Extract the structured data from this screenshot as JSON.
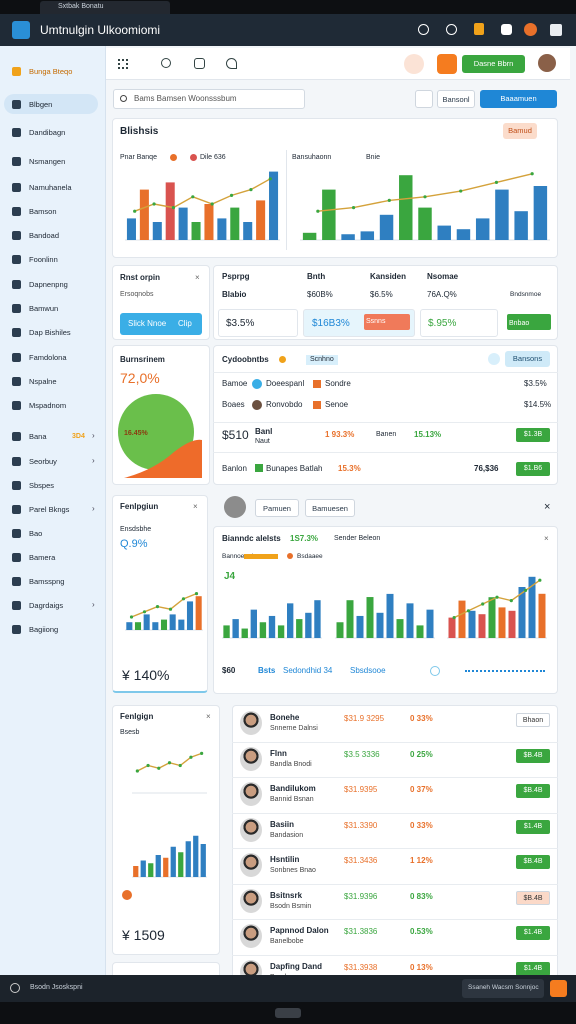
{
  "browser": {
    "tab": "Sxtbak Bonatu"
  },
  "header": {
    "title": "Umtnulgin Ulkoomiomi"
  },
  "sidebar": {
    "items": [
      "Bunga Bteqo",
      "Blbgen",
      "Dandibagn",
      "Nsmangen",
      "Namuhanela",
      "Bamson",
      "Bandoad",
      "Foonlinn",
      "Dapnenpng",
      "Bamwun",
      "Dap Bishiles",
      "Famdolona",
      "Nspalne",
      "Mspadnom",
      "Bana",
      "Seorbuy",
      "Sbspes",
      "Parel Bkngs",
      "Bao",
      "Bamera",
      "Bamsspng",
      "Dagrdaigs",
      "Bagiiong"
    ],
    "badge": "3D4"
  },
  "toolbar": {
    "action": "Dasne Bbrn",
    "search": "Bams Bamsen Woonsssbum",
    "filter": "Bansonl",
    "primary": "Baaamuen"
  },
  "overview": {
    "title": "Blishsis",
    "button": "Bamud",
    "left_legend": [
      "Pnar Banqe",
      "Dile 636"
    ],
    "right_legend": [
      "Bansuhaonn",
      "Bnie"
    ]
  },
  "report": {
    "title": "Rnst orpin",
    "subtitle": "Ersoqnobs",
    "button": "Slick Nnoe",
    "button_tag": "Clip"
  },
  "stats": {
    "headers": [
      "Psprpg",
      "Bnth",
      "Kansiden",
      "Nsomae"
    ],
    "row": [
      "Blabio",
      "$60B%",
      "$6.5%",
      "76A.Q%",
      "Bndsnmoe"
    ],
    "boxes": [
      "$3.5%",
      "$16B3%",
      "Ssnns",
      "$.95%",
      "Bnbao"
    ]
  },
  "balance": {
    "title": "Burnsrinem",
    "value": "72,0%",
    "share": "16.45%"
  },
  "contributors": {
    "title": "Cydoobntbs",
    "tag": "Scnhno",
    "button": "Bansons",
    "rows": [
      {
        "label": "Bamoe",
        "a": "Doeespanl",
        "b": "Sondre",
        "value": "$3.5%"
      },
      {
        "label": "Boaes",
        "a": "Ronvobdo",
        "b": "Senoe",
        "value": "$14.5%"
      }
    ],
    "totals": {
      "amount": "$510",
      "name": "Banl",
      "sub": "Naut",
      "pct1": "1 93.3%",
      "mid": "Banen",
      "pct2": "15.13%",
      "button": "$1.3B"
    },
    "last": {
      "label": "Banlon",
      "tag": "Bunapes Batlah",
      "pct": "15.3%",
      "value": "76,$36",
      "button": "$1.B6"
    }
  },
  "growth": {
    "title": "Fenlpgiun",
    "subtitle": "Ensdsbhe",
    "value": "Q.9%",
    "total": "¥ 140%"
  },
  "analytics": {
    "tabs": [
      "Pamuen",
      "Bamuesen"
    ],
    "title": "Bianndc alelsts",
    "value": "1S7.3%",
    "legend": "Sender Beleon",
    "series": [
      "Bannoenol",
      "Bsdaaee"
    ],
    "marker": "J4",
    "footer": [
      "$60",
      "Bsts",
      "Sedondhid 34",
      "Sbsdsooe"
    ]
  },
  "trend": {
    "title": "Fenlgign",
    "subtitle": "Bsesb",
    "total": "¥ 1509"
  },
  "people": [
    {
      "name": "Bonehe",
      "sub": "Snnerne Dalnsi",
      "value": "$31.9 3295",
      "pct": "0 33%",
      "color": "#e8702a",
      "button": "Bhaon",
      "button_color": "#ffffff"
    },
    {
      "name": "Flnn",
      "sub": "Bandla Bnodi",
      "value": "$3.5 3336",
      "pct": "0 25%",
      "color": "#3aa63f",
      "button": "$B.4B",
      "button_color": "#3aa63f"
    },
    {
      "name": "Bandilukom",
      "sub": "Bannid Bsnan",
      "value": "$31.9395",
      "pct": "0 37%",
      "color": "#e8702a",
      "button": "$B.4B",
      "button_color": "#3aa63f"
    },
    {
      "name": "Basiin",
      "sub": "Bandasion",
      "value": "$31.3390",
      "pct": "0 33%",
      "color": "#e8702a",
      "button": "$1.4B",
      "button_color": "#3aa63f"
    },
    {
      "name": "Hsntilin",
      "sub": "Sonbnes Bnao",
      "value": "$31.3436",
      "pct": "1 12%",
      "color": "#e8702a",
      "button": "$B.4B",
      "button_color": "#3aa63f"
    },
    {
      "name": "Bsitnsrk",
      "sub": "Bsodn Bsmin",
      "value": "$31.9396",
      "pct": "0 83%",
      "color": "#3aa63f",
      "button": "$B.4B",
      "button_color": "#fbd9c8"
    },
    {
      "name": "Papnnod Dalon",
      "sub": "Banelbobe",
      "value": "$31.3836",
      "pct": "0.53%",
      "color": "#3aa63f",
      "button": "$1.4B",
      "button_color": "#3aa63f"
    },
    {
      "name": "Dapfing Dand",
      "sub": "Bandsen",
      "value": "$31.3938",
      "pct": "0 13%",
      "color": "#e8702a",
      "button": "$1.4B",
      "button_color": "#3aa63f"
    }
  ],
  "footer": {
    "left": "Bsodn Jsoskspni",
    "right": "Ssaneh Wacsm Sonnjoc"
  },
  "charts": [
    {
      "ylim": [
        0,
        100
      ],
      "values": [
        30,
        70,
        25,
        80,
        45,
        25,
        50,
        30,
        45,
        25,
        55,
        95
      ],
      "colors": [
        "#2f7fc1",
        "#e8702a",
        "#2f7fc1",
        "#d9534f",
        "#2f7fc1",
        "#3aa63f",
        "#e8702a",
        "#2f7fc1",
        "#3aa63f",
        "#2f7fc1",
        "#e8702a",
        "#2f7fc1"
      ],
      "line": [
        40,
        50,
        45,
        60,
        50,
        62,
        70,
        85
      ]
    },
    {
      "ylim": [
        0,
        100
      ],
      "values": [
        10,
        70,
        8,
        12,
        35,
        90,
        45,
        20,
        15,
        30,
        70,
        40,
        75
      ],
      "colors": [
        "#3aa63f",
        "#3aa63f",
        "#2f7fc1",
        "#2f7fc1",
        "#2f7fc1",
        "#3aa63f",
        "#3aa63f",
        "#2f7fc1",
        "#2f7fc1",
        "#2f7fc1",
        "#2f7fc1",
        "#2f7fc1",
        "#2f7fc1"
      ],
      "line": [
        40,
        45,
        55,
        60,
        68,
        80,
        92
      ]
    },
    {
      "ylim": [
        0,
        100
      ],
      "values": [
        15,
        15,
        30,
        15,
        20,
        30,
        20,
        55,
        65
      ],
      "colors": [
        "#2f7fc1",
        "#3aa63f",
        "#2f7fc1",
        "#2f7fc1",
        "#3aa63f",
        "#2f7fc1",
        "#2f7fc1",
        "#2f7fc1",
        "#e8702a"
      ],
      "line": [
        25,
        35,
        45,
        40,
        60,
        70
      ]
    },
    {
      "ylim": [
        0,
        100
      ],
      "values": [
        20,
        30,
        15,
        45,
        25,
        35,
        20,
        55,
        30,
        40,
        60
      ],
      "colors": [
        "#3aa63f",
        "#2f7fc1",
        "#3aa63f",
        "#2f7fc1",
        "#3aa63f",
        "#2f7fc1",
        "#3aa63f",
        "#2f7fc1",
        "#3aa63f",
        "#2f7fc1",
        "#2f7fc1"
      ]
    },
    {
      "ylim": [
        0,
        100
      ],
      "values": [
        25,
        60,
        35,
        65,
        40,
        70,
        30,
        55,
        20,
        45
      ],
      "colors": [
        "#3aa63f",
        "#3aa63f",
        "#2f7fc1",
        "#3aa63f",
        "#2f7fc1",
        "#2f7fc1",
        "#3aa63f",
        "#2f7fc1",
        "#3aa63f",
        "#2f7fc1"
      ]
    },
    {
      "ylim": [
        0,
        100
      ],
      "values": [
        30,
        55,
        40,
        35,
        60,
        45,
        40,
        75,
        90,
        65
      ],
      "colors": [
        "#d9534f",
        "#e8702a",
        "#2f7fc1",
        "#d9534f",
        "#3aa63f",
        "#e8702a",
        "#d9534f",
        "#2f7fc1",
        "#2f7fc1",
        "#e8702a"
      ],
      "line": [
        30,
        40,
        50,
        60,
        55,
        70,
        85
      ]
    },
    {
      "ylim": [
        0,
        100
      ],
      "line": [
        40,
        50,
        45,
        55,
        50,
        65,
        72
      ]
    },
    {
      "ylim": [
        0,
        100
      ],
      "values": [
        20,
        30,
        25,
        40,
        35,
        55,
        45,
        65,
        75,
        60
      ],
      "colors": [
        "#e8702a",
        "#2f7fc1",
        "#3aa63f",
        "#2f7fc1",
        "#e8702a",
        "#2f7fc1",
        "#3aa63f",
        "#2f7fc1",
        "#2f7fc1",
        "#2f7fc1"
      ]
    }
  ]
}
